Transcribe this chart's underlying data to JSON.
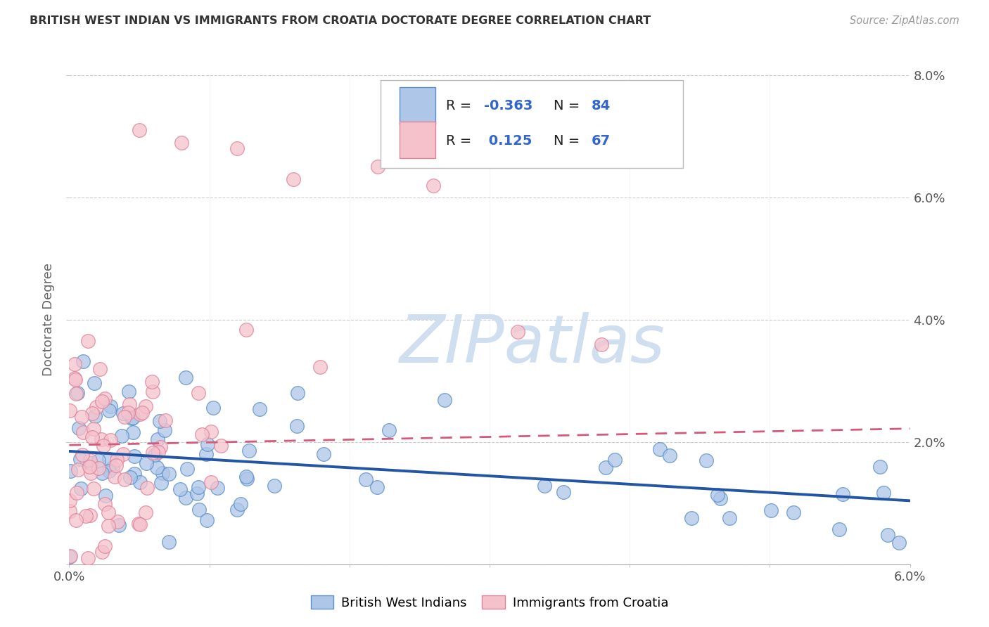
{
  "title": "BRITISH WEST INDIAN VS IMMIGRANTS FROM CROATIA DOCTORATE DEGREE CORRELATION CHART",
  "source": "Source: ZipAtlas.com",
  "ylabel": "Doctorate Degree",
  "x_min": 0.0,
  "x_max": 0.06,
  "y_min": 0.0,
  "y_max": 0.08,
  "yticks": [
    0.0,
    0.02,
    0.04,
    0.06,
    0.08
  ],
  "ytick_labels": [
    "",
    "2.0%",
    "4.0%",
    "6.0%",
    "8.0%"
  ],
  "blue_R": -0.363,
  "blue_N": 84,
  "pink_R": 0.125,
  "pink_N": 67,
  "blue_color": "#aec6e8",
  "blue_edge_color": "#5b8fc9",
  "blue_line_color": "#2255a4",
  "pink_color": "#f5c2cc",
  "pink_edge_color": "#e0829a",
  "pink_line_color": "#d45a7a",
  "watermark_color": "#d0dff0",
  "background_color": "#ffffff",
  "grid_color": "#cccccc",
  "legend_text_color": "#3366cc",
  "legend_label_color": "#222222",
  "blue_line_intercept": 0.0185,
  "blue_line_slope": -0.135,
  "pink_line_intercept": 0.0195,
  "pink_line_slope": 0.045
}
